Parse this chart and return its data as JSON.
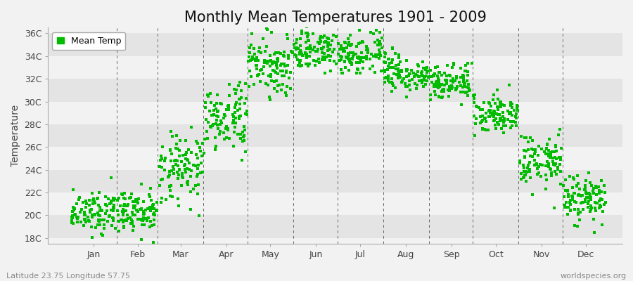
{
  "title": "Monthly Mean Temperatures 1901 - 2009",
  "ylabel": "Temperature",
  "xlabel_bottom_left": "Latitude 23.75 Longitude 57.75",
  "xlabel_bottom_right": "worldspecies.org",
  "ytick_labels": [
    "18C",
    "20C",
    "22C",
    "24C",
    "26C",
    "28C",
    "30C",
    "32C",
    "34C",
    "36C"
  ],
  "ytick_values": [
    18,
    20,
    22,
    24,
    26,
    28,
    30,
    32,
    34,
    36
  ],
  "ylim": [
    17.5,
    36.5
  ],
  "xlim": [
    -15,
    375
  ],
  "months": [
    "Jan",
    "Feb",
    "Mar",
    "Apr",
    "May",
    "Jun",
    "Jul",
    "Aug",
    "Sep",
    "Oct",
    "Nov",
    "Dec"
  ],
  "month_day_starts": [
    1,
    32,
    60,
    91,
    121,
    152,
    182,
    213,
    244,
    274,
    305,
    335
  ],
  "month_day_mids": [
    16,
    46,
    75,
    106,
    136,
    167,
    197,
    228,
    259,
    289,
    320,
    350
  ],
  "month_lengths": [
    31,
    28,
    31,
    30,
    31,
    30,
    31,
    31,
    30,
    31,
    30,
    31
  ],
  "dot_color": "#00bb00",
  "background_color": "#f2f2f2",
  "stripe_light": "#f2f2f2",
  "stripe_dark": "#e4e4e4",
  "title_fontsize": 15,
  "axis_label_fontsize": 10,
  "tick_fontsize": 9,
  "legend_label": "Mean Temp",
  "monthly_mean": [
    20.3,
    20.2,
    24.0,
    28.5,
    33.2,
    34.5,
    34.2,
    32.5,
    31.8,
    29.0,
    24.8,
    21.5
  ],
  "monthly_std": [
    0.9,
    1.0,
    1.5,
    1.5,
    1.2,
    0.9,
    0.9,
    0.8,
    0.8,
    0.9,
    1.2,
    1.1
  ],
  "n_years": 109,
  "seed": 12
}
